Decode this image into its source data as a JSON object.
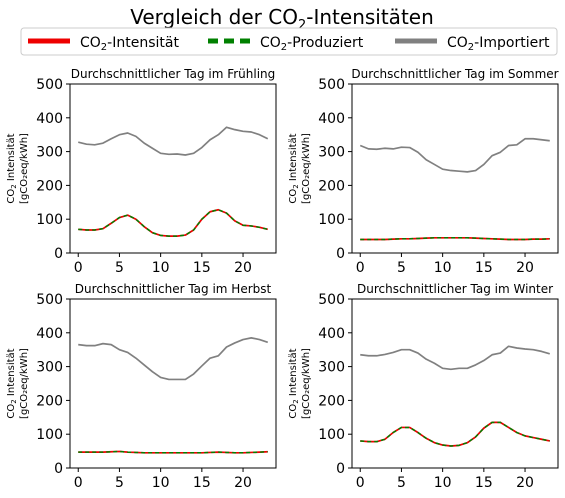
{
  "figure": {
    "title_prefix": "Vergleich der CO",
    "title_sub": "2",
    "title_suffix": "-Intensitäten"
  },
  "legend": {
    "placement": "top",
    "items": [
      {
        "prefix": "CO",
        "sub": "2",
        "suffix": "-Intensität",
        "color": "#ee0000",
        "style": "solid"
      },
      {
        "prefix": "CO",
        "sub": "2",
        "suffix": "-Produziert",
        "color": "#008000",
        "style": "dashed"
      },
      {
        "prefix": "CO",
        "sub": "2",
        "suffix": "-Importiert",
        "color": "#808080",
        "style": "solid"
      }
    ]
  },
  "chart_data": [
    {
      "type": "line",
      "title": "Durchschnittlicher Tag im Frühling",
      "ylabel_line1_prefix": "CO",
      "ylabel_line1_sub": "2",
      "ylabel_line1_suffix": " Intensität",
      "ylabel_line2": "[gCO₂eq/kWh]",
      "xlim": [
        -1,
        24
      ],
      "ylim": [
        0,
        500
      ],
      "xticks": [
        0,
        5,
        10,
        15,
        20
      ],
      "yticks": [
        0,
        100,
        200,
        300,
        400,
        500
      ],
      "x": [
        0,
        1,
        2,
        3,
        4,
        5,
        6,
        7,
        8,
        9,
        10,
        11,
        12,
        13,
        14,
        15,
        16,
        17,
        18,
        19,
        20,
        21,
        22,
        23
      ],
      "series": [
        {
          "key": "imported",
          "color": "#808080",
          "values": [
            328,
            322,
            320,
            325,
            338,
            350,
            355,
            345,
            325,
            310,
            295,
            292,
            293,
            290,
            295,
            312,
            335,
            350,
            372,
            365,
            360,
            358,
            350,
            338
          ]
        },
        {
          "key": "intensity",
          "color": "#ee0000",
          "values": [
            70,
            68,
            68,
            72,
            88,
            105,
            112,
            100,
            78,
            60,
            52,
            50,
            50,
            53,
            68,
            100,
            122,
            128,
            118,
            95,
            82,
            80,
            76,
            70
          ]
        },
        {
          "key": "produced",
          "color": "#008000",
          "values": [
            70,
            68,
            68,
            72,
            88,
            105,
            112,
            100,
            78,
            60,
            52,
            50,
            50,
            53,
            68,
            100,
            122,
            128,
            118,
            95,
            82,
            80,
            76,
            70
          ]
        }
      ]
    },
    {
      "type": "line",
      "title": "Durchschnittlicher Tag im Sommer",
      "ylabel_line1_prefix": "CO",
      "ylabel_line1_sub": "2",
      "ylabel_line1_suffix": " Intensität",
      "ylabel_line2": "[gCO₂eq/kWh]",
      "xlim": [
        -1,
        24
      ],
      "ylim": [
        0,
        500
      ],
      "xticks": [
        0,
        5,
        10,
        15,
        20
      ],
      "yticks": [
        0,
        100,
        200,
        300,
        400,
        500
      ],
      "x": [
        0,
        1,
        2,
        3,
        4,
        5,
        6,
        7,
        8,
        9,
        10,
        11,
        12,
        13,
        14,
        15,
        16,
        17,
        18,
        19,
        20,
        21,
        22,
        23
      ],
      "series": [
        {
          "key": "imported",
          "color": "#808080",
          "values": [
            318,
            308,
            307,
            310,
            308,
            313,
            312,
            298,
            276,
            262,
            248,
            244,
            242,
            240,
            244,
            262,
            288,
            298,
            318,
            320,
            338,
            338,
            335,
            332
          ]
        },
        {
          "key": "intensity",
          "color": "#ee0000",
          "values": [
            40,
            40,
            40,
            40,
            41,
            42,
            42,
            43,
            44,
            45,
            45,
            45,
            45,
            45,
            44,
            43,
            42,
            41,
            40,
            40,
            40,
            41,
            41,
            42
          ]
        },
        {
          "key": "produced",
          "color": "#008000",
          "values": [
            40,
            40,
            40,
            40,
            41,
            42,
            42,
            43,
            44,
            45,
            45,
            45,
            45,
            45,
            44,
            43,
            42,
            41,
            40,
            40,
            40,
            41,
            41,
            42
          ]
        }
      ]
    },
    {
      "type": "line",
      "title": "Durchschnittlicher Tag im Herbst",
      "ylabel_line1_prefix": "CO",
      "ylabel_line1_sub": "2",
      "ylabel_line1_suffix": " Intensität",
      "ylabel_line2": "[gCO₂eq/kWh]",
      "xlim": [
        -1,
        24
      ],
      "ylim": [
        0,
        500
      ],
      "xticks": [
        0,
        5,
        10,
        15,
        20
      ],
      "yticks": [
        0,
        100,
        200,
        300,
        400,
        500
      ],
      "x": [
        0,
        1,
        2,
        3,
        4,
        5,
        6,
        7,
        8,
        9,
        10,
        11,
        12,
        13,
        14,
        15,
        16,
        17,
        18,
        19,
        20,
        21,
        22,
        23
      ],
      "series": [
        {
          "key": "imported",
          "color": "#808080",
          "values": [
            365,
            362,
            362,
            368,
            365,
            350,
            342,
            325,
            305,
            285,
            268,
            262,
            262,
            262,
            278,
            302,
            325,
            332,
            358,
            370,
            380,
            385,
            380,
            372
          ]
        },
        {
          "key": "intensity",
          "color": "#ee0000",
          "values": [
            47,
            47,
            47,
            47,
            48,
            49,
            47,
            46,
            45,
            45,
            45,
            45,
            45,
            45,
            45,
            45,
            46,
            47,
            46,
            45,
            45,
            46,
            47,
            48
          ]
        },
        {
          "key": "produced",
          "color": "#008000",
          "values": [
            47,
            47,
            47,
            47,
            48,
            49,
            47,
            46,
            45,
            45,
            45,
            45,
            45,
            45,
            45,
            45,
            46,
            47,
            46,
            45,
            45,
            46,
            47,
            48
          ]
        }
      ]
    },
    {
      "type": "line",
      "title": "Durchschnittlicher Tag im Winter",
      "ylabel_line1_prefix": "CO",
      "ylabel_line1_sub": "2",
      "ylabel_line1_suffix": " Intensität",
      "ylabel_line2": "[gCO₂eq/kWh]",
      "xlim": [
        -1,
        24
      ],
      "ylim": [
        0,
        500
      ],
      "xticks": [
        0,
        5,
        10,
        15,
        20
      ],
      "yticks": [
        0,
        100,
        200,
        300,
        400,
        500
      ],
      "x": [
        0,
        1,
        2,
        3,
        4,
        5,
        6,
        7,
        8,
        9,
        10,
        11,
        12,
        13,
        14,
        15,
        16,
        17,
        18,
        19,
        20,
        21,
        22,
        23
      ],
      "series": [
        {
          "key": "imported",
          "color": "#808080",
          "values": [
            335,
            332,
            332,
            336,
            342,
            350,
            350,
            340,
            322,
            310,
            295,
            292,
            295,
            295,
            305,
            318,
            335,
            340,
            360,
            355,
            352,
            350,
            345,
            338
          ]
        },
        {
          "key": "intensity",
          "color": "#ee0000",
          "values": [
            80,
            78,
            78,
            85,
            105,
            120,
            120,
            105,
            88,
            75,
            68,
            65,
            67,
            75,
            92,
            118,
            135,
            135,
            120,
            105,
            95,
            90,
            85,
            80
          ]
        },
        {
          "key": "produced",
          "color": "#008000",
          "values": [
            80,
            78,
            78,
            85,
            105,
            120,
            120,
            105,
            88,
            75,
            68,
            65,
            67,
            75,
            92,
            118,
            135,
            135,
            120,
            105,
            95,
            90,
            85,
            80
          ]
        }
      ]
    }
  ]
}
